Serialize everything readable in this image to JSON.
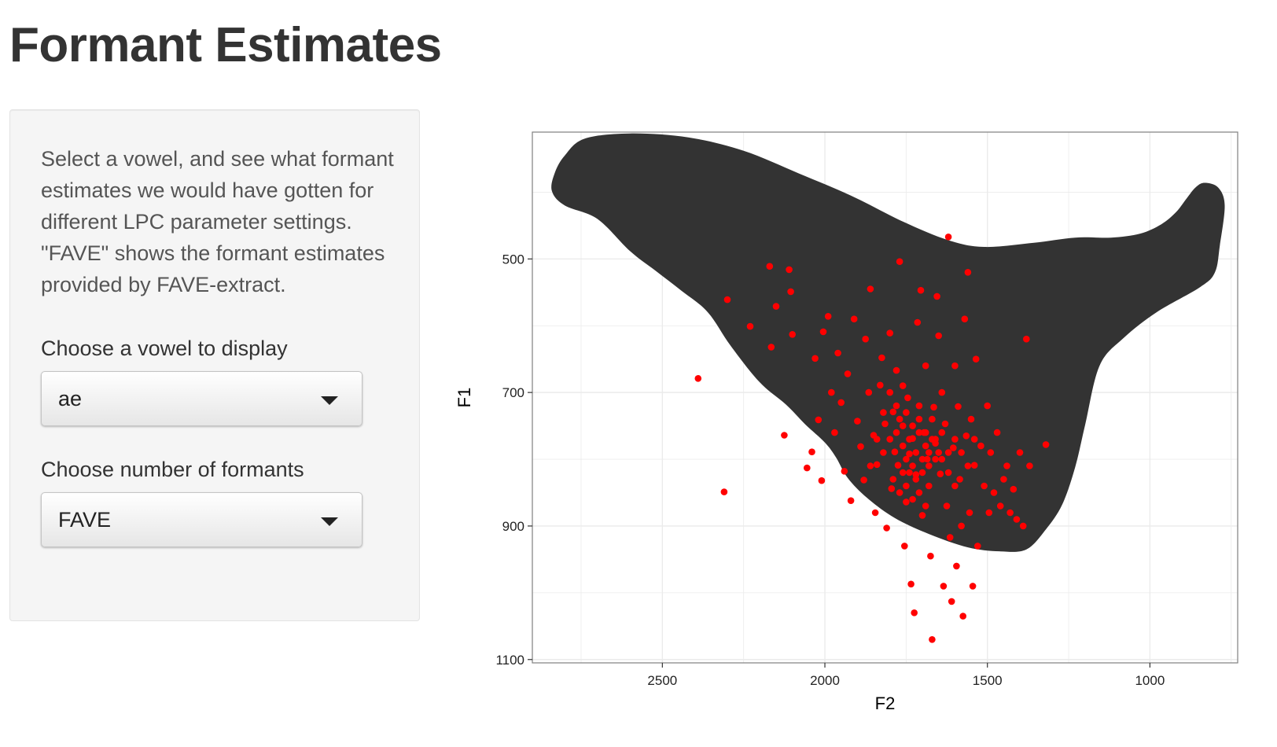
{
  "page": {
    "title": "Formant Estimates"
  },
  "sidebar": {
    "help_text": "Select a vowel, and see what formant estimates we would have gotten for different LPC parameter settings. \"FAVE\" shows the formant estimates provided by FAVE-extract.",
    "vowel_label": "Choose a vowel to display",
    "vowel_value": "ae",
    "formants_label": "Choose number of formants",
    "formants_value": "FAVE"
  },
  "chart_data": {
    "type": "scatter",
    "xlabel": "F2",
    "ylabel": "F1",
    "x_reversed": true,
    "y_reversed": true,
    "xlim": [
      2900,
      730
    ],
    "ylim": [
      310,
      1105
    ],
    "x_ticks": [
      2500,
      2000,
      1500,
      1000
    ],
    "y_ticks": [
      500,
      700,
      900,
      1100
    ],
    "grid": true,
    "colors": {
      "points": "#ff0000",
      "region": "#333333",
      "background": "#ffffff",
      "grid": "#ebebeb"
    },
    "region_outline": [
      [
        2800,
        345
      ],
      [
        2740,
        320
      ],
      [
        2600,
        312
      ],
      [
        2420,
        318
      ],
      [
        2250,
        338
      ],
      [
        2080,
        372
      ],
      [
        1920,
        405
      ],
      [
        1760,
        444
      ],
      [
        1620,
        472
      ],
      [
        1510,
        482
      ],
      [
        1360,
        476
      ],
      [
        1230,
        468
      ],
      [
        1120,
        468
      ],
      [
        1030,
        462
      ],
      [
        965,
        448
      ],
      [
        920,
        430
      ],
      [
        888,
        410
      ],
      [
        860,
        393
      ],
      [
        832,
        386
      ],
      [
        790,
        393
      ],
      [
        770,
        420
      ],
      [
        785,
        480
      ],
      [
        800,
        520
      ],
      [
        845,
        542
      ],
      [
        980,
        580
      ],
      [
        1080,
        618
      ],
      [
        1155,
        660
      ],
      [
        1200,
        750
      ],
      [
        1230,
        812
      ],
      [
        1270,
        868
      ],
      [
        1320,
        905
      ],
      [
        1380,
        935
      ],
      [
        1460,
        938
      ],
      [
        1560,
        932
      ],
      [
        1680,
        912
      ],
      [
        1785,
        888
      ],
      [
        1870,
        858
      ],
      [
        1930,
        828
      ],
      [
        1965,
        798
      ],
      [
        2000,
        775
      ],
      [
        2060,
        748
      ],
      [
        2120,
        718
      ],
      [
        2200,
        685
      ],
      [
        2290,
        630
      ],
      [
        2360,
        580
      ],
      [
        2440,
        548
      ],
      [
        2520,
        518
      ],
      [
        2600,
        488
      ],
      [
        2700,
        440
      ],
      [
        2800,
        420
      ],
      [
        2840,
        398
      ],
      [
        2830,
        370
      ]
    ],
    "points": [
      [
        2390,
        679
      ],
      [
        2310,
        849
      ],
      [
        2300,
        561
      ],
      [
        2230,
        601
      ],
      [
        2170,
        511
      ],
      [
        2165,
        632
      ],
      [
        2150,
        571
      ],
      [
        2125,
        764
      ],
      [
        2110,
        516
      ],
      [
        2105,
        549
      ],
      [
        2100,
        613
      ],
      [
        2055,
        813
      ],
      [
        2040,
        789
      ],
      [
        2030,
        649
      ],
      [
        2020,
        741
      ],
      [
        2010,
        832
      ],
      [
        2005,
        609
      ],
      [
        1990,
        586
      ],
      [
        1980,
        700
      ],
      [
        1970,
        760
      ],
      [
        1960,
        641
      ],
      [
        1950,
        715
      ],
      [
        1940,
        818
      ],
      [
        1930,
        672
      ],
      [
        1920,
        862
      ],
      [
        1910,
        590
      ],
      [
        1900,
        743
      ],
      [
        1890,
        781
      ],
      [
        1880,
        831
      ],
      [
        1875,
        620
      ],
      [
        1865,
        700
      ],
      [
        1860,
        545
      ],
      [
        1850,
        764
      ],
      [
        1845,
        880
      ],
      [
        1840,
        808
      ],
      [
        1830,
        689
      ],
      [
        1825,
        648
      ],
      [
        1815,
        747
      ],
      [
        1810,
        903
      ],
      [
        1800,
        611
      ],
      [
        1795,
        844
      ],
      [
        1790,
        729
      ],
      [
        1785,
        789
      ],
      [
        1780,
        667
      ],
      [
        1775,
        809
      ],
      [
        1770,
        504
      ],
      [
        1760,
        750
      ],
      [
        1755,
        930
      ],
      [
        1750,
        864
      ],
      [
        1745,
        708
      ],
      [
        1740,
        792
      ],
      [
        1735,
        987
      ],
      [
        1730,
        769
      ],
      [
        1725,
        1030
      ],
      [
        1720,
        823
      ],
      [
        1715,
        595
      ],
      [
        1710,
        720
      ],
      [
        1705,
        547
      ],
      [
        1700,
        884
      ],
      [
        1695,
        760
      ],
      [
        1690,
        660
      ],
      [
        1685,
        800
      ],
      [
        1680,
        840
      ],
      [
        1675,
        945
      ],
      [
        1670,
        1070
      ],
      [
        1665,
        722
      ],
      [
        1660,
        776
      ],
      [
        1655,
        556
      ],
      [
        1650,
        615
      ],
      [
        1645,
        822
      ],
      [
        1640,
        700
      ],
      [
        1635,
        990
      ],
      [
        1630,
        747
      ],
      [
        1625,
        870
      ],
      [
        1620,
        467
      ],
      [
        1615,
        917
      ],
      [
        1610,
        1013
      ],
      [
        1605,
        783
      ],
      [
        1600,
        660
      ],
      [
        1595,
        960
      ],
      [
        1590,
        721
      ],
      [
        1585,
        830
      ],
      [
        1580,
        900
      ],
      [
        1575,
        1035
      ],
      [
        1570,
        590
      ],
      [
        1565,
        765
      ],
      [
        1560,
        520
      ],
      [
        1555,
        880
      ],
      [
        1550,
        740
      ],
      [
        1545,
        990
      ],
      [
        1540,
        809
      ],
      [
        1535,
        650
      ],
      [
        1530,
        930
      ],
      [
        1520,
        780
      ],
      [
        1510,
        840
      ],
      [
        1500,
        720
      ],
      [
        1495,
        880
      ],
      [
        1490,
        790
      ],
      [
        1480,
        850
      ],
      [
        1470,
        760
      ],
      [
        1460,
        870
      ],
      [
        1450,
        830
      ],
      [
        1440,
        810
      ],
      [
        1430,
        880
      ],
      [
        1420,
        845
      ],
      [
        1410,
        890
      ],
      [
        1400,
        790
      ],
      [
        1390,
        900
      ],
      [
        1380,
        620
      ],
      [
        1370,
        810
      ],
      [
        1320,
        778
      ],
      [
        1760,
        780
      ],
      [
        1750,
        800
      ],
      [
        1740,
        770
      ],
      [
        1730,
        810
      ],
      [
        1720,
        790
      ],
      [
        1710,
        760
      ],
      [
        1700,
        800
      ],
      [
        1690,
        780
      ],
      [
        1680,
        810
      ],
      [
        1670,
        770
      ],
      [
        1660,
        800
      ],
      [
        1650,
        790
      ],
      [
        1740,
        820
      ],
      [
        1720,
        830
      ],
      [
        1700,
        820
      ],
      [
        1680,
        790
      ],
      [
        1660,
        770
      ],
      [
        1640,
        800
      ],
      [
        1770,
        740
      ],
      [
        1750,
        730
      ],
      [
        1730,
        750
      ],
      [
        1710,
        740
      ],
      [
        1690,
        760
      ],
      [
        1670,
        740
      ],
      [
        1790,
        830
      ],
      [
        1770,
        850
      ],
      [
        1750,
        840
      ],
      [
        1730,
        860
      ],
      [
        1710,
        850
      ],
      [
        1690,
        870
      ],
      [
        1820,
        790
      ],
      [
        1800,
        770
      ],
      [
        1780,
        760
      ],
      [
        1760,
        820
      ],
      [
        1620,
        820
      ],
      [
        1600,
        840
      ],
      [
        1860,
        810
      ],
      [
        1840,
        770
      ],
      [
        1820,
        730
      ],
      [
        1800,
        700
      ],
      [
        1780,
        720
      ],
      [
        1760,
        690
      ],
      [
        1640,
        760
      ],
      [
        1620,
        790
      ],
      [
        1600,
        770
      ],
      [
        1580,
        790
      ],
      [
        1560,
        810
      ],
      [
        1540,
        770
      ]
    ]
  }
}
